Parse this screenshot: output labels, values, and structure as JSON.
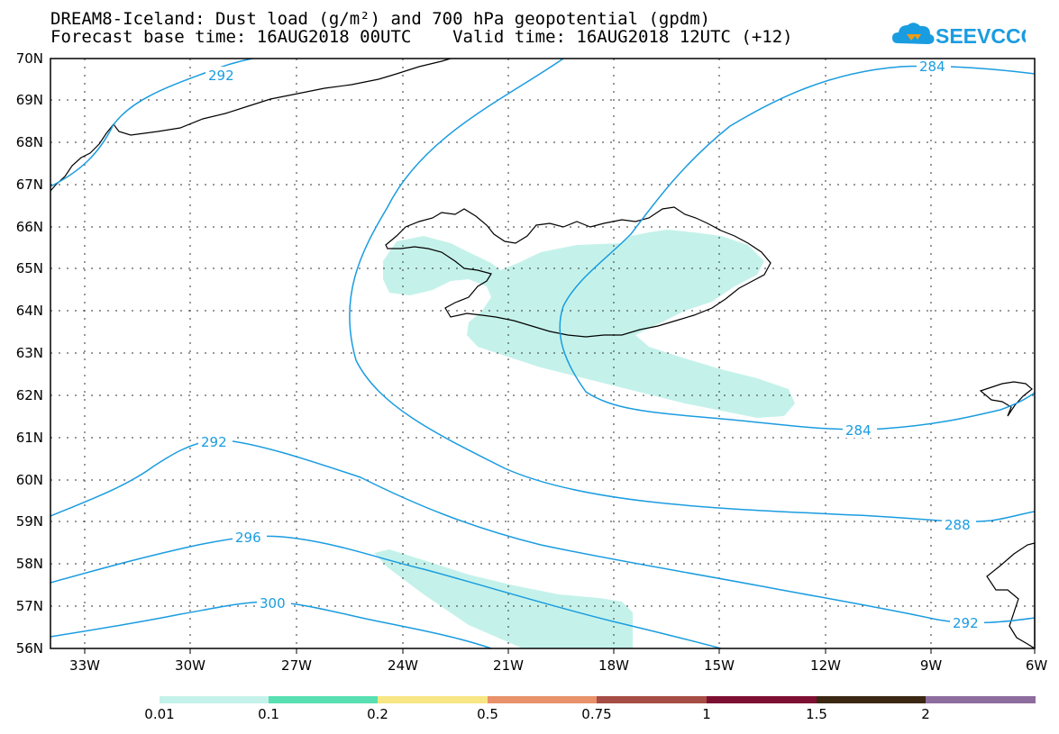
{
  "title": {
    "line1": "DREAM8-Iceland: Dust load (g/m²) and 700 hPa geopotential (gpdm)",
    "line2": "Forecast base time: 16AUG2018 00UTC    Valid time: 16AUG2018 12UTC (+12)"
  },
  "logo": {
    "text": "SEEVCCC",
    "icon": "cloud-logo-icon",
    "color": "#1a9ce0"
  },
  "map": {
    "lat_labels": [
      "70N",
      "69N",
      "68N",
      "67N",
      "66N",
      "65N",
      "64N",
      "63N",
      "62N",
      "61N",
      "60N",
      "59N",
      "58N",
      "57N",
      "56N"
    ],
    "lon_labels": [
      "33W",
      "30W",
      "27W",
      "24W",
      "21W",
      "18W",
      "15W",
      "12W",
      "9W",
      "6W"
    ],
    "contour_labels": [
      {
        "text": "292"
      },
      {
        "text": "284"
      },
      {
        "text": "284"
      },
      {
        "text": "292"
      },
      {
        "text": "288"
      },
      {
        "text": "296"
      },
      {
        "text": "292"
      },
      {
        "text": "300"
      }
    ],
    "contour_color": "#1a9ce0",
    "dust_color": "#c4f2ea"
  },
  "colorbar": {
    "labels": [
      "0.01",
      "0.1",
      "0.2",
      "0.5",
      "0.75",
      "1",
      "1.5",
      "2"
    ],
    "colors": [
      "#c4f2ea",
      "#58dfb2",
      "#f7e683",
      "#e8916a",
      "#a64d45",
      "#7d0f33",
      "#3b2712",
      "#8d6c9e"
    ]
  }
}
